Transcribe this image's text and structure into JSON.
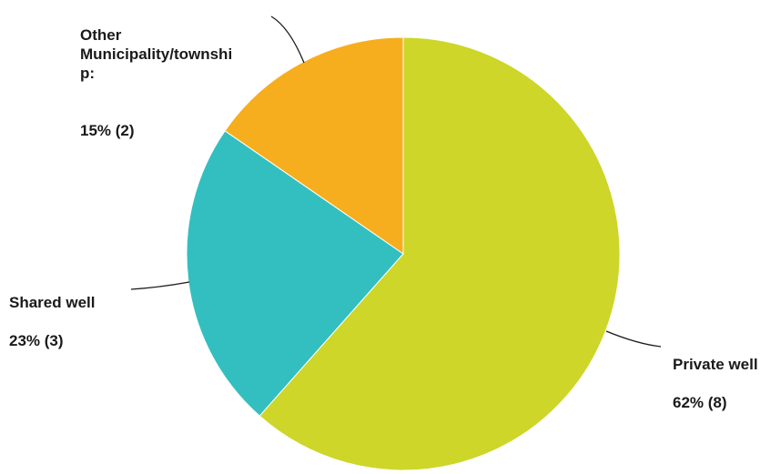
{
  "chart_data": {
    "type": "pie",
    "title": "",
    "slices": [
      {
        "label": "Private well",
        "percent": "62%",
        "count": "(8)",
        "value": 8,
        "color": "#cdd629"
      },
      {
        "label": "Shared well",
        "percent": "23%",
        "count": "(3)",
        "value": 3,
        "color": "#33bfc0"
      },
      {
        "label": "Other Municipality/township:",
        "percent": "15%",
        "count": "(2)",
        "value": 2,
        "color": "#f6ae1e"
      }
    ],
    "legend": "none",
    "data_labels": "outside with leader lines"
  }
}
